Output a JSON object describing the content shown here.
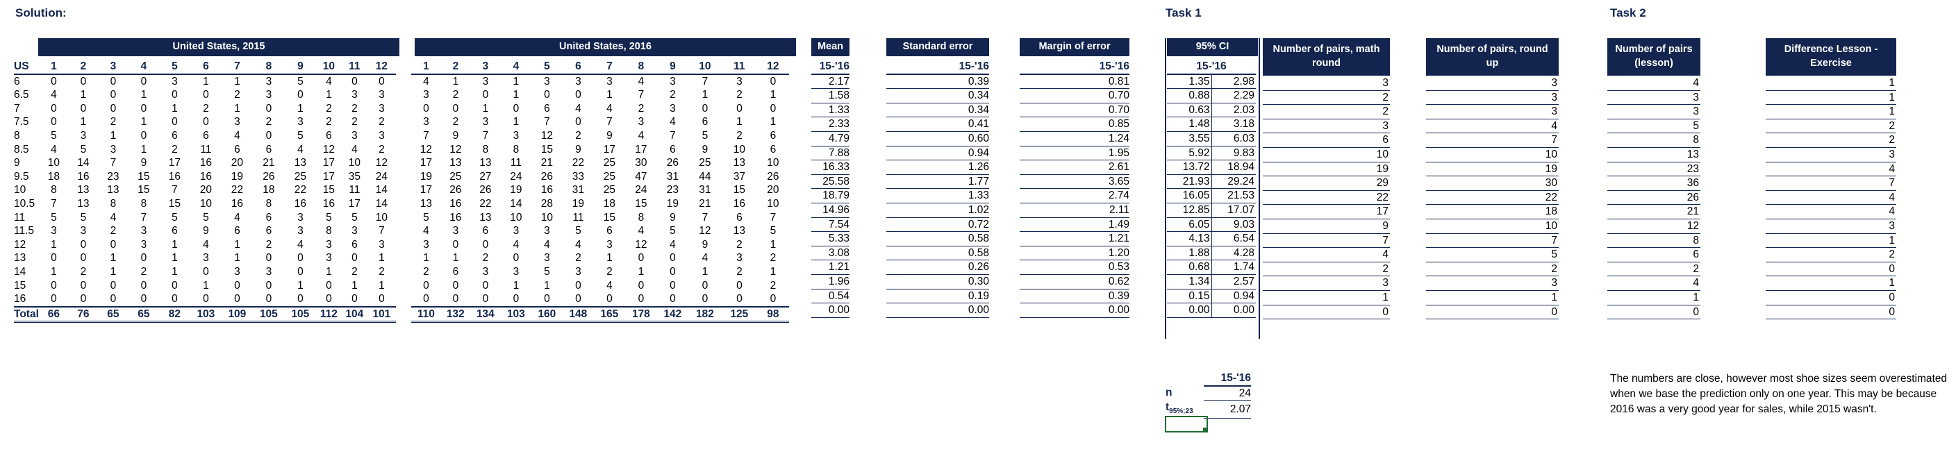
{
  "solution_label": "Solution:",
  "task1_label": "Task 1",
  "task2_label": "Task 2",
  "header_2015": "United States, 2015",
  "header_2016": "United States, 2016",
  "header_mean": "Mean",
  "header_se": "Standard error",
  "header_moe": "Margin of error",
  "header_ci": "95% CI",
  "header_math": "Number of pairs, math round",
  "header_roundup": "Number of pairs, round up",
  "header_lesson": "Number of pairs (lesson)",
  "header_diff": "Difference Lesson - Exercise",
  "sub_period": "15-'16",
  "us_label": "US",
  "months": [
    "1",
    "2",
    "3",
    "4",
    "5",
    "6",
    "7",
    "8",
    "9",
    "10",
    "11",
    "12"
  ],
  "rows": [
    {
      "size": "6",
      "y2015": [
        "0",
        "0",
        "0",
        "0",
        "3",
        "1",
        "1",
        "3",
        "5",
        "4",
        "0",
        "0"
      ],
      "y2016": [
        "4",
        "1",
        "3",
        "1",
        "3",
        "3",
        "3",
        "4",
        "3",
        "7",
        "3",
        "0"
      ],
      "mean": "2.17",
      "se": "0.39",
      "moe": "0.81",
      "ci_lo": "1.35",
      "ci_hi": "2.98",
      "math": "3",
      "up": "3",
      "lesson": "4",
      "diff": "1"
    },
    {
      "size": "6.5",
      "y2015": [
        "4",
        "1",
        "0",
        "1",
        "0",
        "0",
        "2",
        "3",
        "0",
        "1",
        "3",
        "3"
      ],
      "y2016": [
        "3",
        "2",
        "0",
        "1",
        "0",
        "0",
        "1",
        "7",
        "2",
        "1",
        "2",
        "1"
      ],
      "mean": "1.58",
      "se": "0.34",
      "moe": "0.70",
      "ci_lo": "0.88",
      "ci_hi": "2.29",
      "math": "2",
      "up": "3",
      "lesson": "3",
      "diff": "1"
    },
    {
      "size": "7",
      "y2015": [
        "0",
        "0",
        "0",
        "0",
        "1",
        "2",
        "1",
        "0",
        "1",
        "2",
        "2",
        "3"
      ],
      "y2016": [
        "0",
        "0",
        "1",
        "0",
        "6",
        "4",
        "4",
        "2",
        "3",
        "0",
        "0",
        "0"
      ],
      "mean": "1.33",
      "se": "0.34",
      "moe": "0.70",
      "ci_lo": "0.63",
      "ci_hi": "2.03",
      "math": "2",
      "up": "3",
      "lesson": "3",
      "diff": "1"
    },
    {
      "size": "7.5",
      "y2015": [
        "0",
        "1",
        "2",
        "1",
        "0",
        "0",
        "3",
        "2",
        "3",
        "2",
        "2",
        "2"
      ],
      "y2016": [
        "3",
        "2",
        "3",
        "1",
        "7",
        "0",
        "7",
        "3",
        "4",
        "6",
        "1",
        "1"
      ],
      "mean": "2.33",
      "se": "0.41",
      "moe": "0.85",
      "ci_lo": "1.48",
      "ci_hi": "3.18",
      "math": "3",
      "up": "4",
      "lesson": "5",
      "diff": "2"
    },
    {
      "size": "8",
      "y2015": [
        "5",
        "3",
        "1",
        "0",
        "6",
        "6",
        "4",
        "0",
        "5",
        "6",
        "3",
        "3"
      ],
      "y2016": [
        "7",
        "9",
        "7",
        "3",
        "12",
        "2",
        "9",
        "4",
        "7",
        "5",
        "2",
        "6"
      ],
      "mean": "4.79",
      "se": "0.60",
      "moe": "1.24",
      "ci_lo": "3.55",
      "ci_hi": "6.03",
      "math": "6",
      "up": "7",
      "lesson": "8",
      "diff": "2"
    },
    {
      "size": "8.5",
      "y2015": [
        "4",
        "5",
        "3",
        "1",
        "2",
        "11",
        "6",
        "6",
        "4",
        "12",
        "4",
        "2"
      ],
      "y2016": [
        "12",
        "12",
        "8",
        "8",
        "15",
        "9",
        "17",
        "17",
        "6",
        "9",
        "10",
        "6"
      ],
      "mean": "7.88",
      "se": "0.94",
      "moe": "1.95",
      "ci_lo": "5.92",
      "ci_hi": "9.83",
      "math": "10",
      "up": "10",
      "lesson": "13",
      "diff": "3"
    },
    {
      "size": "9",
      "y2015": [
        "10",
        "14",
        "7",
        "9",
        "17",
        "16",
        "20",
        "21",
        "13",
        "17",
        "10",
        "12"
      ],
      "y2016": [
        "17",
        "13",
        "13",
        "11",
        "21",
        "22",
        "25",
        "30",
        "26",
        "25",
        "13",
        "10"
      ],
      "mean": "16.33",
      "se": "1.26",
      "moe": "2.61",
      "ci_lo": "13.72",
      "ci_hi": "18.94",
      "math": "19",
      "up": "19",
      "lesson": "23",
      "diff": "4"
    },
    {
      "size": "9.5",
      "y2015": [
        "18",
        "16",
        "23",
        "15",
        "16",
        "16",
        "19",
        "26",
        "25",
        "17",
        "35",
        "24"
      ],
      "y2016": [
        "19",
        "25",
        "27",
        "24",
        "26",
        "33",
        "25",
        "47",
        "31",
        "44",
        "37",
        "26"
      ],
      "mean": "25.58",
      "se": "1.77",
      "moe": "3.65",
      "ci_lo": "21.93",
      "ci_hi": "29.24",
      "math": "29",
      "up": "30",
      "lesson": "36",
      "diff": "7"
    },
    {
      "size": "10",
      "y2015": [
        "8",
        "13",
        "13",
        "15",
        "7",
        "20",
        "22",
        "18",
        "22",
        "15",
        "11",
        "14"
      ],
      "y2016": [
        "17",
        "26",
        "26",
        "19",
        "16",
        "31",
        "25",
        "24",
        "23",
        "31",
        "15",
        "20"
      ],
      "mean": "18.79",
      "se": "1.33",
      "moe": "2.74",
      "ci_lo": "16.05",
      "ci_hi": "21.53",
      "math": "22",
      "up": "22",
      "lesson": "26",
      "diff": "4"
    },
    {
      "size": "10.5",
      "y2015": [
        "7",
        "13",
        "8",
        "8",
        "15",
        "10",
        "16",
        "8",
        "16",
        "16",
        "17",
        "14"
      ],
      "y2016": [
        "13",
        "16",
        "22",
        "14",
        "28",
        "19",
        "18",
        "15",
        "19",
        "21",
        "16",
        "10"
      ],
      "mean": "14.96",
      "se": "1.02",
      "moe": "2.11",
      "ci_lo": "12.85",
      "ci_hi": "17.07",
      "math": "17",
      "up": "18",
      "lesson": "21",
      "diff": "4"
    },
    {
      "size": "11",
      "y2015": [
        "5",
        "5",
        "4",
        "7",
        "5",
        "5",
        "4",
        "6",
        "3",
        "5",
        "5",
        "10"
      ],
      "y2016": [
        "5",
        "16",
        "13",
        "10",
        "10",
        "11",
        "15",
        "8",
        "9",
        "7",
        "6",
        "7"
      ],
      "mean": "7.54",
      "se": "0.72",
      "moe": "1.49",
      "ci_lo": "6.05",
      "ci_hi": "9.03",
      "math": "9",
      "up": "10",
      "lesson": "12",
      "diff": "3"
    },
    {
      "size": "11.5",
      "y2015": [
        "3",
        "3",
        "2",
        "3",
        "6",
        "9",
        "6",
        "6",
        "3",
        "8",
        "3",
        "7"
      ],
      "y2016": [
        "4",
        "3",
        "6",
        "3",
        "3",
        "5",
        "6",
        "4",
        "5",
        "12",
        "13",
        "5"
      ],
      "mean": "5.33",
      "se": "0.58",
      "moe": "1.21",
      "ci_lo": "4.13",
      "ci_hi": "6.54",
      "math": "7",
      "up": "7",
      "lesson": "8",
      "diff": "1"
    },
    {
      "size": "12",
      "y2015": [
        "1",
        "0",
        "0",
        "3",
        "1",
        "4",
        "1",
        "2",
        "4",
        "3",
        "6",
        "3"
      ],
      "y2016": [
        "3",
        "0",
        "0",
        "4",
        "4",
        "4",
        "3",
        "12",
        "4",
        "9",
        "2",
        "1"
      ],
      "mean": "3.08",
      "se": "0.58",
      "moe": "1.20",
      "ci_lo": "1.88",
      "ci_hi": "4.28",
      "math": "4",
      "up": "5",
      "lesson": "6",
      "diff": "2"
    },
    {
      "size": "13",
      "y2015": [
        "0",
        "0",
        "1",
        "0",
        "1",
        "3",
        "1",
        "0",
        "0",
        "3",
        "0",
        "1"
      ],
      "y2016": [
        "1",
        "1",
        "2",
        "0",
        "3",
        "2",
        "1",
        "0",
        "0",
        "4",
        "3",
        "2"
      ],
      "mean": "1.21",
      "se": "0.26",
      "moe": "0.53",
      "ci_lo": "0.68",
      "ci_hi": "1.74",
      "math": "2",
      "up": "2",
      "lesson": "2",
      "diff": "0"
    },
    {
      "size": "14",
      "y2015": [
        "1",
        "2",
        "1",
        "2",
        "1",
        "0",
        "3",
        "3",
        "0",
        "1",
        "2",
        "2"
      ],
      "y2016": [
        "2",
        "6",
        "3",
        "3",
        "5",
        "3",
        "2",
        "1",
        "0",
        "1",
        "2",
        "1"
      ],
      "mean": "1.96",
      "se": "0.30",
      "moe": "0.62",
      "ci_lo": "1.34",
      "ci_hi": "2.57",
      "math": "3",
      "up": "3",
      "lesson": "4",
      "diff": "1"
    },
    {
      "size": "15",
      "y2015": [
        "0",
        "0",
        "0",
        "0",
        "0",
        "1",
        "0",
        "0",
        "1",
        "0",
        "1",
        "1"
      ],
      "y2016": [
        "0",
        "0",
        "0",
        "1",
        "1",
        "0",
        "4",
        "0",
        "0",
        "0",
        "0",
        "2"
      ],
      "mean": "0.54",
      "se": "0.19",
      "moe": "0.39",
      "ci_lo": "0.15",
      "ci_hi": "0.94",
      "math": "1",
      "up": "1",
      "lesson": "1",
      "diff": "0"
    },
    {
      "size": "16",
      "y2015": [
        "0",
        "0",
        "0",
        "0",
        "0",
        "0",
        "0",
        "0",
        "0",
        "0",
        "0",
        "0"
      ],
      "y2016": [
        "0",
        "0",
        "0",
        "0",
        "0",
        "0",
        "0",
        "0",
        "0",
        "0",
        "0",
        "0"
      ],
      "mean": "0.00",
      "se": "0.00",
      "moe": "0.00",
      "ci_lo": "0.00",
      "ci_hi": "0.00",
      "math": "0",
      "up": "0",
      "lesson": "0",
      "diff": "0"
    }
  ],
  "total_label": "Total",
  "totals_2015": [
    "66",
    "76",
    "65",
    "65",
    "82",
    "103",
    "109",
    "105",
    "105",
    "112",
    "104",
    "101"
  ],
  "totals_2016": [
    "110",
    "132",
    "134",
    "103",
    "160",
    "148",
    "165",
    "178",
    "142",
    "182",
    "125",
    "98"
  ],
  "stats_header": "15-'16",
  "n_label": "n",
  "n_value": "24",
  "t_label": "t",
  "t_sub": "95%;23",
  "t_value": "2.07",
  "task2_note": "The numbers are close, however most shoe sizes seem overestimated when we base the prediction only on one year. This may be because 2016 was a very good year for sales, while 2015 wasn't."
}
